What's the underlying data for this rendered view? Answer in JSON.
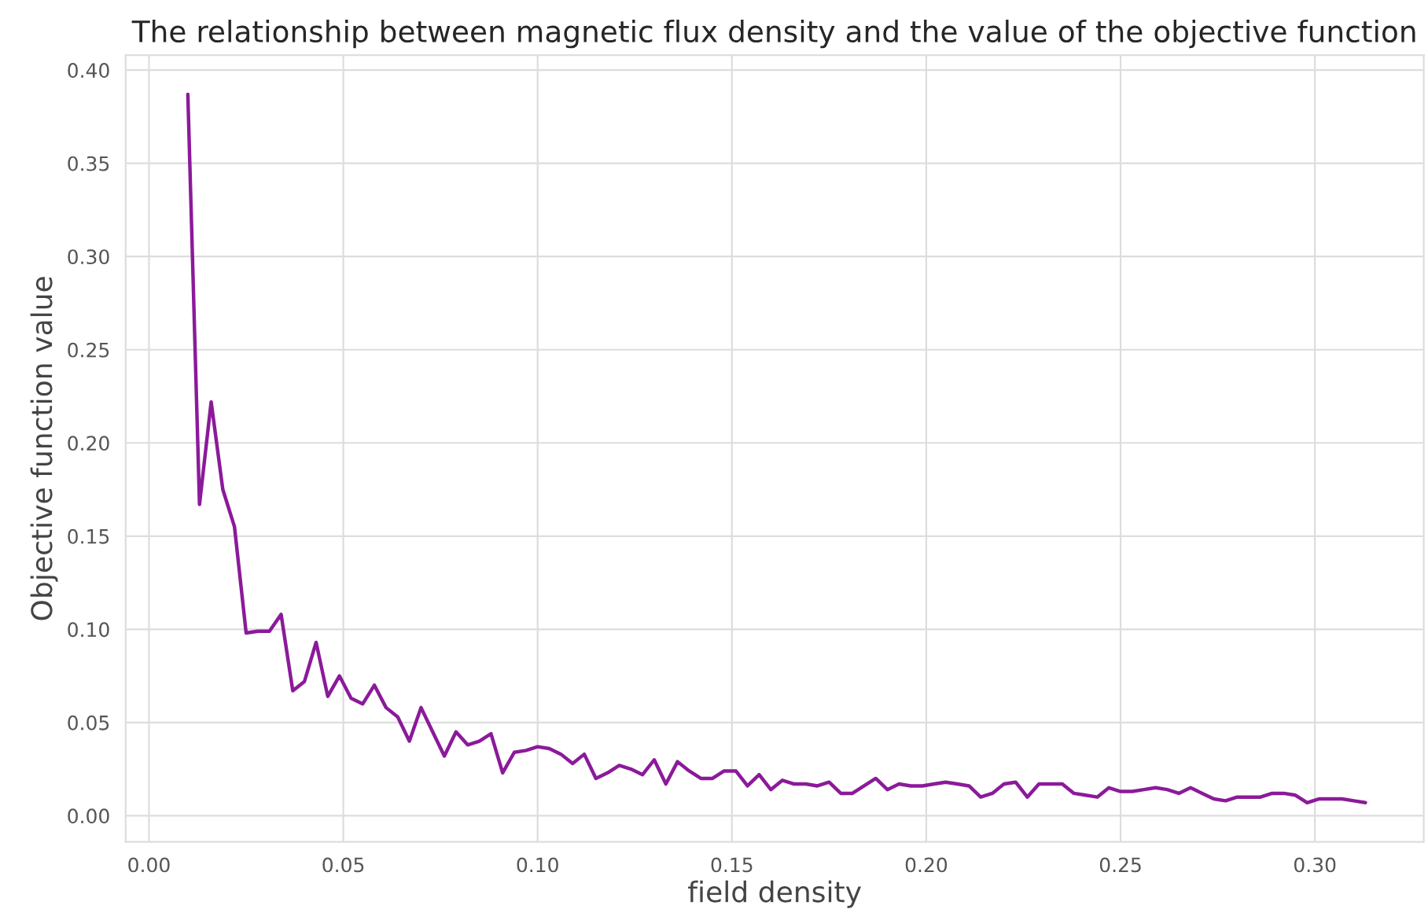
{
  "chart_data": {
    "type": "line",
    "title": "The relationship between magnetic flux density and the value of the objective function",
    "xlabel": "field density",
    "ylabel": "Objective function value",
    "x": [
      0.01,
      0.013,
      0.016,
      0.019,
      0.022,
      0.025,
      0.028,
      0.031,
      0.034,
      0.037,
      0.04,
      0.043,
      0.046,
      0.049,
      0.052,
      0.055,
      0.058,
      0.061,
      0.064,
      0.067,
      0.07,
      0.073,
      0.076,
      0.079,
      0.082,
      0.085,
      0.088,
      0.091,
      0.094,
      0.097,
      0.1,
      0.103,
      0.106,
      0.109,
      0.112,
      0.115,
      0.118,
      0.121,
      0.124,
      0.127,
      0.13,
      0.133,
      0.136,
      0.139,
      0.142,
      0.145,
      0.148,
      0.151,
      0.154,
      0.157,
      0.16,
      0.163,
      0.166,
      0.169,
      0.172,
      0.175,
      0.178,
      0.181,
      0.184,
      0.187,
      0.19,
      0.193,
      0.196,
      0.199,
      0.202,
      0.205,
      0.208,
      0.211,
      0.214,
      0.217,
      0.22,
      0.223,
      0.226,
      0.229,
      0.232,
      0.235,
      0.238,
      0.241,
      0.244,
      0.247,
      0.25,
      0.253,
      0.256,
      0.259,
      0.262,
      0.265,
      0.268,
      0.271,
      0.274,
      0.277,
      0.28,
      0.283,
      0.286,
      0.289,
      0.292,
      0.295,
      0.298,
      0.301,
      0.304,
      0.307,
      0.31,
      0.313
    ],
    "series": [
      {
        "color": "#8b1a9a",
        "values": [
          0.387,
          0.167,
          0.222,
          0.175,
          0.155,
          0.098,
          0.099,
          0.099,
          0.108,
          0.067,
          0.072,
          0.093,
          0.064,
          0.075,
          0.063,
          0.06,
          0.07,
          0.058,
          0.053,
          0.04,
          0.058,
          0.045,
          0.032,
          0.045,
          0.038,
          0.04,
          0.044,
          0.023,
          0.034,
          0.035,
          0.037,
          0.036,
          0.033,
          0.028,
          0.033,
          0.02,
          0.023,
          0.027,
          0.025,
          0.022,
          0.03,
          0.017,
          0.029,
          0.024,
          0.02,
          0.02,
          0.024,
          0.024,
          0.016,
          0.022,
          0.014,
          0.019,
          0.017,
          0.017,
          0.016,
          0.018,
          0.012,
          0.012,
          0.016,
          0.02,
          0.014,
          0.017,
          0.016,
          0.016,
          0.017,
          0.018,
          0.017,
          0.016,
          0.01,
          0.012,
          0.017,
          0.018,
          0.01,
          0.017,
          0.017,
          0.017,
          0.012,
          0.011,
          0.01,
          0.015,
          0.013,
          0.013,
          0.014,
          0.015,
          0.014,
          0.012,
          0.015,
          0.012,
          0.009,
          0.008,
          0.01,
          0.01,
          0.01,
          0.012,
          0.012,
          0.011,
          0.007,
          0.009,
          0.009,
          0.009,
          0.008,
          0.007
        ]
      }
    ],
    "xlim": [
      -0.006,
      0.328
    ],
    "ylim": [
      -0.014,
      0.408
    ],
    "xticks": [
      {
        "value": 0,
        "label": "0.00"
      },
      {
        "value": 0.05,
        "label": "0.05"
      },
      {
        "value": 0.1,
        "label": "0.10"
      },
      {
        "value": 0.15,
        "label": "0.15"
      },
      {
        "value": 0.2,
        "label": "0.20"
      },
      {
        "value": 0.25,
        "label": "0.25"
      },
      {
        "value": 0.3,
        "label": "0.30"
      }
    ],
    "yticks": [
      {
        "value": 0,
        "label": "0.00"
      },
      {
        "value": 0.05,
        "label": "0.05"
      },
      {
        "value": 0.1,
        "label": "0.10"
      },
      {
        "value": 0.15,
        "label": "0.15"
      },
      {
        "value": 0.2,
        "label": "0.20"
      },
      {
        "value": 0.25,
        "label": "0.25"
      },
      {
        "value": 0.3,
        "label": "0.30"
      },
      {
        "value": 0.35,
        "label": "0.35"
      },
      {
        "value": 0.4,
        "label": "0.40"
      }
    ],
    "grid": true,
    "marker": "none",
    "line_style": "solid"
  }
}
